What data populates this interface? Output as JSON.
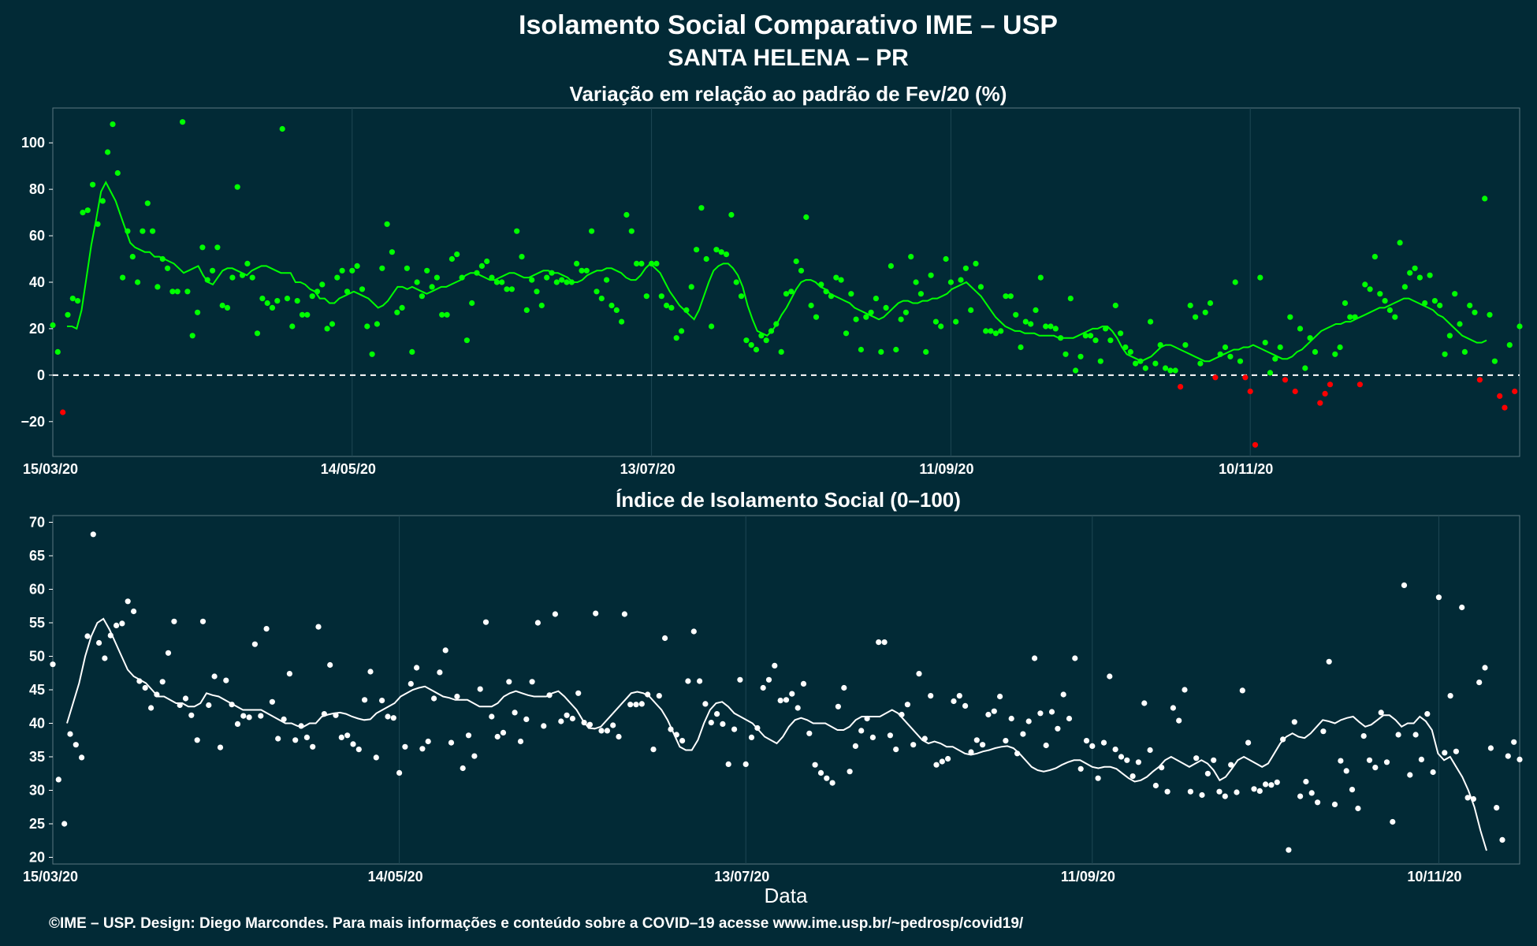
{
  "header": {
    "title": "Isolamento Social Comparativo IME – USP",
    "subtitle": "SANTA HELENA – PR"
  },
  "footer": {
    "credit": "©IME – USP. Design: Diego Marcondes. Para mais informações e conteúdo sobre a COVID–19 acesse www.ime.usp.br/~pedrosp/covid19/"
  },
  "colors": {
    "background": "#022a36",
    "positive": "#00ff00",
    "negative": "#ff0000",
    "index": "#ffffff",
    "grid": "#1e4754",
    "zero_line": "#ffffff"
  },
  "chart_data": [
    {
      "type": "scatter",
      "title": "Variação em relação ao padrão de Fev/20 (%)",
      "xlabel": "",
      "ylabel": "",
      "x_start": "2020-03-15",
      "x_ticks": [
        "15/03/20",
        "14/05/20",
        "13/07/20",
        "11/09/20",
        "10/11/20"
      ],
      "y_ticks": [
        -20,
        0,
        20,
        40,
        60,
        80,
        100
      ],
      "ylim": [
        -35,
        115
      ],
      "reference_line": 0,
      "grid": true,
      "points_note": "daily values (%), first point = 15/03/20; negative values drawn red, positive green",
      "values": [
        21.5,
        10,
        -16,
        26,
        33,
        32,
        70,
        71,
        82,
        65,
        75,
        96,
        108,
        87,
        42,
        62,
        51,
        40,
        62,
        74,
        62,
        38,
        50,
        46,
        36,
        36,
        109,
        36,
        17,
        27,
        55,
        41,
        45,
        55,
        30,
        29,
        42,
        81,
        43,
        48,
        42,
        18,
        33,
        31,
        29,
        32,
        106,
        33,
        21,
        32,
        26,
        26,
        34,
        36,
        39,
        20,
        22,
        42,
        45,
        36,
        45,
        47,
        37,
        21,
        9,
        22,
        46,
        65,
        53,
        27,
        29,
        46,
        10,
        40,
        34,
        45,
        38,
        42,
        26,
        26,
        50,
        52,
        42,
        15,
        31,
        44,
        47,
        49,
        42,
        40,
        40,
        37,
        37,
        62,
        51,
        28,
        41,
        36,
        30,
        42,
        44,
        40,
        41,
        40,
        40,
        48,
        45,
        45,
        62,
        36,
        33,
        41,
        30,
        28,
        23,
        69,
        62,
        48,
        48,
        34,
        48,
        48,
        34,
        30,
        29,
        16,
        19,
        28,
        38,
        54,
        72,
        50,
        21,
        54,
        53,
        52,
        69,
        40,
        34,
        15,
        13,
        11,
        17,
        15,
        19,
        22,
        10,
        35,
        36,
        49,
        45,
        68,
        30,
        25,
        39,
        36,
        34,
        42,
        41,
        18,
        35,
        24,
        11,
        25,
        27,
        33,
        10,
        29,
        47,
        11,
        24,
        27,
        51,
        40,
        35,
        10,
        43,
        23,
        21,
        50,
        40,
        23,
        41,
        46,
        28,
        48,
        38,
        19,
        19,
        18,
        19,
        34,
        34,
        26,
        12,
        23,
        22,
        28,
        42,
        21,
        21,
        20,
        16,
        9,
        33,
        2,
        8,
        17,
        17,
        15,
        6,
        20,
        15,
        30,
        18,
        12,
        10,
        5,
        6,
        3,
        23,
        5,
        13,
        3,
        2,
        2,
        -5,
        13,
        30,
        25,
        5,
        27,
        31,
        -1,
        9,
        12,
        8,
        40,
        6,
        -1,
        -7,
        -30,
        42,
        14,
        1,
        7,
        12,
        -2,
        25,
        -7,
        20,
        3,
        16,
        10,
        -12,
        -8,
        -4,
        9,
        12,
        31,
        25,
        25,
        -4,
        39,
        37,
        51,
        35,
        32,
        28,
        25,
        57,
        38,
        44,
        46,
        42,
        31,
        43,
        32,
        30,
        9,
        17,
        35,
        22,
        10,
        30,
        27,
        -2,
        76,
        26,
        6,
        -9,
        -14,
        13,
        -7,
        21
      ],
      "trend_note": "7-day moving average line, green when positive/red segments near zero",
      "trend": [
        21,
        21,
        20,
        28,
        42,
        56,
        67,
        79,
        83,
        79,
        75,
        69,
        63,
        57,
        55,
        54,
        53,
        53,
        51,
        51,
        50,
        49,
        48,
        46,
        44,
        45,
        46,
        47,
        43,
        40,
        39,
        42,
        45,
        46,
        46,
        45,
        44,
        43,
        45,
        46,
        47,
        47,
        46,
        45,
        44,
        44,
        44,
        40,
        40,
        39,
        37,
        36,
        33,
        33,
        31,
        31,
        33,
        34,
        35,
        36,
        35,
        34,
        33,
        31,
        29,
        30,
        32,
        35,
        38,
        38,
        37,
        38,
        37,
        36,
        35,
        36,
        37,
        38,
        38,
        39,
        40,
        41,
        43,
        44,
        44,
        43,
        42,
        41,
        41,
        42,
        43,
        44,
        44,
        43,
        42,
        42,
        43,
        44,
        45,
        45,
        44,
        44,
        43,
        42,
        40,
        40,
        41,
        43,
        44,
        45,
        45,
        46,
        46,
        45,
        44,
        42,
        41,
        41,
        43,
        46,
        48,
        46,
        44,
        40,
        36,
        33,
        30,
        28,
        26,
        24,
        28,
        34,
        40,
        45,
        47,
        48,
        48,
        46,
        43,
        38,
        30,
        24,
        19,
        18,
        17,
        19,
        22,
        26,
        29,
        33,
        37,
        40,
        41,
        41,
        40,
        38,
        37,
        35,
        34,
        33,
        32,
        31,
        29,
        28,
        27,
        26,
        25,
        24,
        25,
        27,
        29,
        31,
        32,
        32,
        31,
        31,
        32,
        32,
        33,
        33,
        34,
        35,
        37,
        38,
        39,
        40,
        38,
        36,
        34,
        31,
        28,
        25,
        23,
        21,
        20,
        19,
        19,
        18,
        18,
        18,
        17,
        17,
        17,
        17,
        16,
        16,
        16,
        16,
        17,
        18,
        19,
        20,
        20,
        21,
        21,
        19,
        16,
        12,
        9,
        8,
        7,
        6,
        7,
        8,
        10,
        12,
        13,
        13,
        12,
        11,
        10,
        9,
        8,
        7,
        6,
        6,
        7,
        8,
        9,
        10,
        11,
        11,
        12,
        12,
        13,
        12,
        11,
        10,
        9,
        8,
        7,
        7,
        8,
        10,
        11,
        13,
        15,
        17,
        19,
        20,
        21,
        22,
        22,
        23,
        23,
        24,
        25,
        26,
        27,
        28,
        29,
        29,
        30,
        31,
        32,
        33,
        33,
        32,
        31,
        30,
        29,
        28,
        26,
        25,
        23,
        21,
        19,
        17,
        16,
        15,
        14,
        14,
        15
      ]
    },
    {
      "type": "scatter",
      "title": "Índice de Isolamento Social (0–100)",
      "xlabel": "Data",
      "ylabel": "",
      "x_start": "2020-03-15",
      "x_ticks": [
        "15/03/20",
        "14/05/20",
        "13/07/20",
        "11/09/20",
        "10/11/20"
      ],
      "y_ticks": [
        20,
        25,
        30,
        35,
        40,
        45,
        50,
        55,
        60,
        65,
        70
      ],
      "ylim": [
        19,
        71
      ],
      "grid": true,
      "points_note": "daily index values, first point = 15/03/20",
      "values": [
        48.8,
        31.6,
        25,
        38.4,
        36.8,
        34.9,
        53,
        68.2,
        52,
        49.7,
        53.1,
        54.6,
        54.9,
        58.2,
        56.7,
        46.3,
        45.3,
        42.3,
        44.3,
        46.2,
        50.5,
        55.2,
        42.7,
        43.7,
        41.2,
        37.5,
        55.2,
        42.7,
        47,
        36.4,
        46.4,
        42.8,
        39.9,
        41.1,
        40.9,
        51.8,
        41.1,
        54.1,
        43.2,
        37.7,
        40.6,
        47.4,
        37.5,
        39.6,
        37.9,
        36.5,
        54.4,
        41.4,
        48.7,
        41.2,
        37.9,
        38.2,
        36.9,
        36.1,
        43.5,
        47.7,
        34.9,
        43.4,
        41,
        40.8,
        32.6,
        36.5,
        45.9,
        48.3,
        36.2,
        37.3,
        43.7,
        47.6,
        50.9,
        37.1,
        44,
        33.3,
        38.2,
        35.1,
        45.1,
        55.1,
        41,
        38,
        38.6,
        46.2,
        41.6,
        37.3,
        40.6,
        46.2,
        55,
        39.6,
        44.2,
        56.3,
        40.3,
        41.2,
        40.7,
        44.5,
        40.1,
        39.8,
        56.4,
        38.9,
        38.9,
        39.7,
        38,
        56.3,
        42.8,
        42.8,
        42.9,
        44.3,
        36.1,
        44.1,
        52.7,
        39.1,
        38.3,
        37.4,
        46.3,
        53.7,
        46.3,
        42.9,
        40.1,
        41.4,
        39.9,
        33.9,
        39.1,
        46.5,
        33.9,
        37.9,
        39.3,
        45.3,
        46.5,
        48.6,
        43.4,
        43.5,
        44.4,
        42.3,
        45.9,
        38.5,
        33.8,
        32.6,
        31.8,
        31.1,
        42.5,
        45.3,
        32.8,
        36.6,
        38.9,
        40.7,
        37.9,
        52.1,
        52.1,
        38.2,
        36.1,
        41.3,
        42.8,
        36.8,
        47.4,
        37.7,
        44.1,
        33.8,
        34.3,
        34.7,
        43.3,
        44.1,
        42.6,
        35.7,
        37.5,
        36.8,
        41.3,
        41.8,
        44,
        37.4,
        40.7,
        35.5,
        38.4,
        40.3,
        49.7,
        41.5,
        36.7,
        41.7,
        39.2,
        44.3,
        40.7,
        49.7,
        33.2,
        37.4,
        36.6,
        31.8,
        37.1,
        47,
        36.1,
        35,
        34.5,
        32.1,
        34.2,
        43,
        36,
        30.7,
        33.4,
        29.8,
        42.3,
        40.4,
        45,
        29.8,
        34.8,
        29.3,
        32.5,
        34.5,
        29.8,
        29.1,
        33.8,
        29.7,
        44.9,
        37.1,
        30.2,
        29.9,
        30.9,
        30.8,
        31.2,
        37.6,
        21.1,
        40.2,
        29.1,
        31.3,
        29.6,
        28.2,
        38.8,
        49.2,
        27.9,
        34.4,
        32.9,
        30.1,
        27.3,
        38.1,
        34.5,
        33.4,
        41.6,
        34.2,
        25.3,
        38.3,
        60.6,
        32.3,
        38.3,
        34.6,
        41.4,
        32.7,
        58.8,
        35.6,
        44.1,
        35.8,
        57.3,
        28.9,
        28.7,
        46.1,
        48.3,
        36.3,
        27.4,
        22.6,
        35.1,
        37.2,
        34.6
      ],
      "trend_note": "7-day moving average line",
      "trend": [
        40,
        43,
        46,
        50,
        53,
        55,
        55.6,
        54,
        52,
        50,
        48,
        47,
        46.5,
        46,
        45,
        44,
        44,
        43.5,
        43,
        43,
        42.5,
        42.5,
        43,
        44.5,
        44.2,
        44,
        43.5,
        43,
        42.5,
        42,
        42,
        42,
        42,
        41.5,
        41,
        40.5,
        40,
        40,
        39.6,
        39.5,
        40,
        40,
        41,
        41.3,
        41.5,
        41.6,
        41.4,
        41,
        40.7,
        40.5,
        40.6,
        41.5,
        42,
        42.5,
        43,
        44,
        44.5,
        45,
        45.3,
        45.5,
        45,
        44.5,
        44,
        43.8,
        43.5,
        43.5,
        43.5,
        43,
        42.5,
        42.5,
        42.5,
        43,
        44,
        44.5,
        44.8,
        44.5,
        44.2,
        44,
        44,
        44,
        44.5,
        44.8,
        44,
        43,
        42,
        40.5,
        39.3,
        39.2,
        39.5,
        40.5,
        41.5,
        42.5,
        43.5,
        44.5,
        44.7,
        44.5,
        44,
        43,
        42,
        40.5,
        38.5,
        36.5,
        36,
        36,
        37.5,
        40,
        42,
        43,
        43.2,
        42.5,
        41.5,
        41,
        40.5,
        40,
        39,
        38,
        37.5,
        37,
        38,
        39.5,
        40.5,
        40.8,
        40.5,
        40,
        40,
        40,
        39.5,
        39,
        39,
        39.5,
        40.5,
        41,
        41,
        41,
        41,
        41.5,
        42,
        41.5,
        40.5,
        39.5,
        38.5,
        37.5,
        37,
        37.3,
        37,
        36.5,
        36.5,
        36,
        35.5,
        35.3,
        35.5,
        35.8,
        36,
        36.3,
        36.5,
        36.6,
        36.3,
        35.5,
        34.5,
        33.5,
        33,
        32.8,
        33,
        33.3,
        33.8,
        34.2,
        34.5,
        34.5,
        34,
        33.5,
        33.3,
        33.5,
        33.5,
        33.2,
        32.5,
        31.8,
        31.3,
        31.5,
        32,
        32.8,
        33.5,
        34.5,
        35,
        34.5,
        34,
        33.5,
        34,
        34.5,
        34,
        33,
        31.5,
        32,
        33.2,
        34.5,
        35,
        34.5,
        34,
        33.5,
        34,
        35.5,
        37,
        38,
        38.5,
        38,
        37.8,
        38.5,
        39.5,
        40.5,
        40.3,
        40,
        40.5,
        40.8,
        41,
        40.2,
        39.5,
        39.8,
        40.5,
        41.2,
        41.2,
        40.5,
        39.5,
        40,
        40,
        41,
        40.3,
        39,
        35.5,
        34.5,
        35,
        33.5,
        32,
        30,
        27.5,
        24,
        21
      ]
    }
  ]
}
